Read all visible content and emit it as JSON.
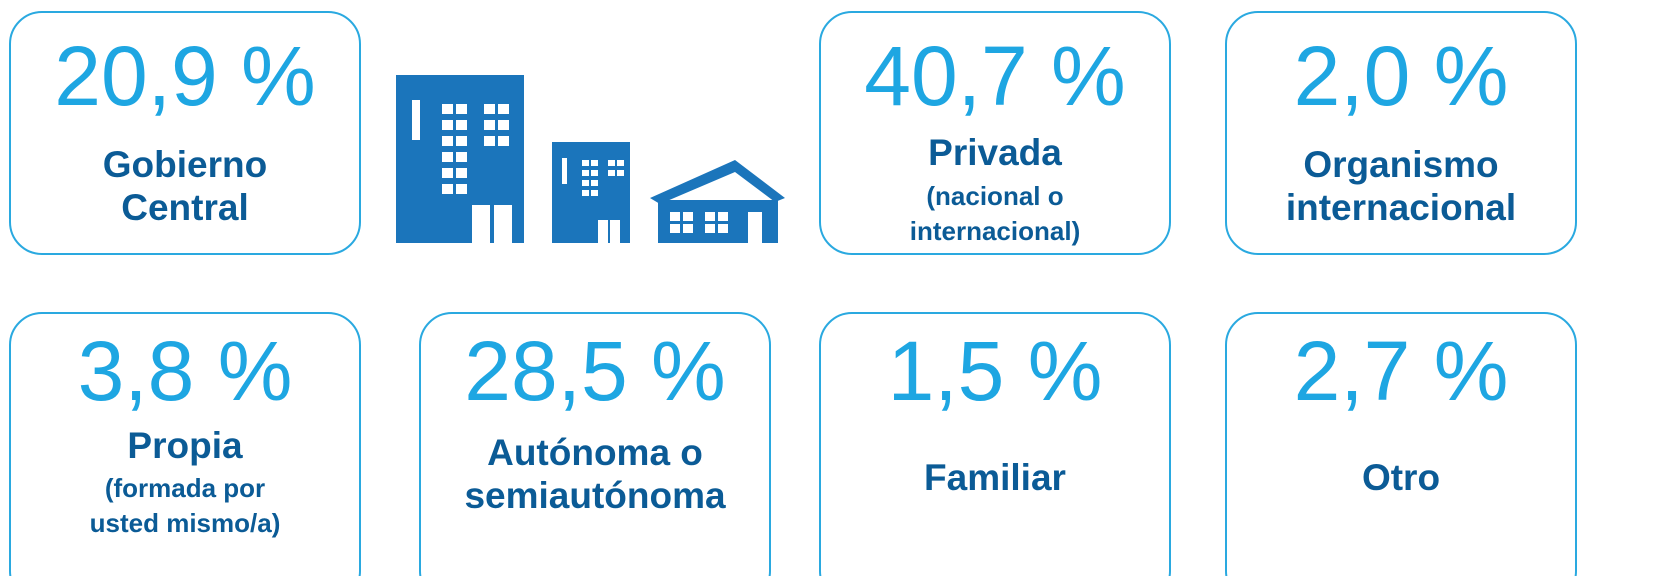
{
  "cards": [
    {
      "value": "20,9 %",
      "label": [
        "Gobierno",
        "Central"
      ]
    },
    {
      "value": "40,7 %",
      "label": [
        "Privada"
      ],
      "note": [
        "(nacional o",
        "internacional)"
      ]
    },
    {
      "value": "2,0 %",
      "label": [
        "Organismo",
        "internacional"
      ]
    },
    {
      "value": "3,8 %",
      "label": [
        "Propia"
      ],
      "note": [
        "(formada por",
        "usted mismo/a)"
      ]
    },
    {
      "value": "28,5 %",
      "label": [
        "Autónoma o",
        "semiautónoma"
      ]
    },
    {
      "value": "1,5 %",
      "label": [
        "Familiar"
      ]
    },
    {
      "value": "2,7 %",
      "label": [
        "Otro"
      ]
    }
  ]
}
